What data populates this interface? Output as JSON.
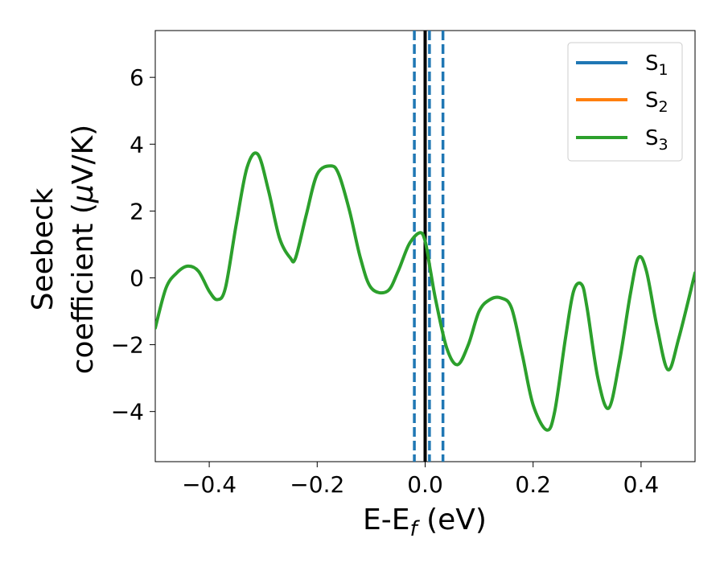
{
  "chart_data": {
    "type": "line",
    "xlabel": {
      "main": "E-E",
      "sub": "f",
      "unit": " (eV)"
    },
    "ylabel": {
      "line1": "Seebeck",
      "line2": "coefficient  (",
      "mu": "μ",
      "unit": "V/K)"
    },
    "xlim": [
      -0.5,
      0.5
    ],
    "ylim": [
      -5.5,
      7.4
    ],
    "xticks": [
      -0.4,
      -0.2,
      0.0,
      0.2,
      0.4
    ],
    "xtick_labels": [
      "−0.4",
      "−0.2",
      "0.0",
      "0.2",
      "0.4"
    ],
    "yticks": [
      -4,
      -2,
      0,
      2,
      4,
      6
    ],
    "ytick_labels": [
      "−4",
      "−2",
      "0",
      "2",
      "4",
      "6"
    ],
    "grid": false,
    "legend": {
      "placement": "top-right",
      "entries": [
        {
          "base": "S",
          "sub": "1",
          "color": "#1f77b4"
        },
        {
          "base": "S",
          "sub": "2",
          "color": "#ff7f0e"
        },
        {
          "base": "S",
          "sub": "3",
          "color": "#2ca02c"
        }
      ]
    },
    "vertical_lines": [
      {
        "x": 0.0,
        "style": "solid",
        "color": "#000000"
      },
      {
        "x": -0.02,
        "style": "dashed",
        "color": "#1f77b4"
      },
      {
        "x": 0.008,
        "style": "dashed",
        "color": "#1f77b4"
      },
      {
        "x": 0.033,
        "style": "dashed",
        "color": "#1f77b4"
      }
    ],
    "series": [
      {
        "name": "S₃",
        "color": "#2ca02c",
        "x": [
          -0.5,
          -0.48,
          -0.46,
          -0.44,
          -0.42,
          -0.4,
          -0.385,
          -0.37,
          -0.35,
          -0.33,
          -0.31,
          -0.29,
          -0.27,
          -0.25,
          -0.24,
          -0.22,
          -0.2,
          -0.175,
          -0.16,
          -0.14,
          -0.12,
          -0.1,
          -0.07,
          -0.05,
          -0.03,
          -0.01,
          0.0,
          0.01,
          0.02,
          0.04,
          0.06,
          0.08,
          0.1,
          0.12,
          0.14,
          0.16,
          0.18,
          0.2,
          0.225,
          0.24,
          0.26,
          0.275,
          0.29,
          0.3,
          0.32,
          0.34,
          0.36,
          0.38,
          0.395,
          0.41,
          0.43,
          0.45,
          0.47,
          0.5
        ],
        "values": [
          -1.5,
          -0.3,
          0.15,
          0.35,
          0.2,
          -0.4,
          -0.65,
          -0.3,
          1.6,
          3.3,
          3.7,
          2.6,
          1.2,
          0.6,
          0.6,
          1.9,
          3.1,
          3.35,
          3.1,
          2.0,
          0.6,
          -0.3,
          -0.4,
          0.2,
          1.0,
          1.35,
          1.1,
          0.2,
          -0.7,
          -2.1,
          -2.6,
          -2.0,
          -1.0,
          -0.65,
          -0.6,
          -0.9,
          -2.3,
          -3.8,
          -4.55,
          -4.0,
          -1.8,
          -0.4,
          -0.2,
          -0.9,
          -3.0,
          -3.9,
          -2.5,
          -0.5,
          0.6,
          0.2,
          -1.5,
          -2.75,
          -1.8,
          0.15
        ]
      }
    ]
  }
}
